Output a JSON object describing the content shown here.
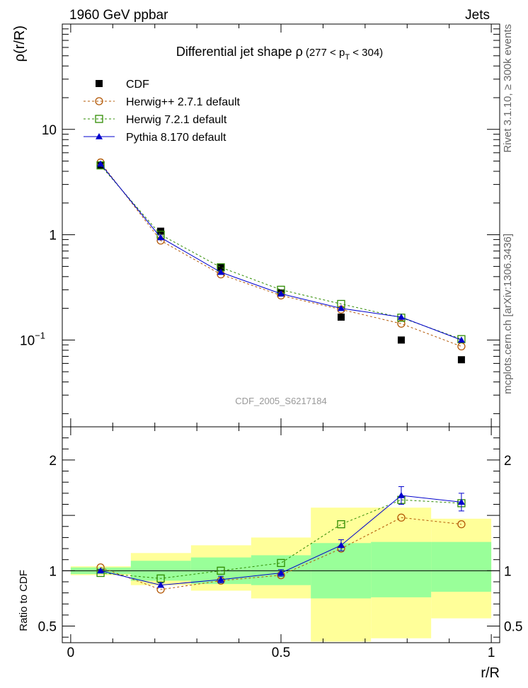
{
  "header": {
    "left": "1960 GeV ppbar",
    "right": "Jets"
  },
  "side_labels": {
    "rivet": "Rivet 3.1.10, ≥ 300k events",
    "mcplots": "mcplots.cern.ch [arXiv:1306.3436]"
  },
  "chart_data": [
    {
      "type": "line",
      "panel": "main",
      "title_main": "Differential jet shape  ρ",
      "title_range": "(277 < p",
      "title_sub": "T",
      "title_end": " < 304)",
      "ylabel": "ρ(r/R)",
      "analysis_label": "CDF_2005_S6217184",
      "yscale": "log",
      "xlim": [
        -0.02,
        1.02
      ],
      "ylim": [
        0.015,
        100
      ],
      "ytick_labels": [
        {
          "value": 10,
          "label": "10"
        },
        {
          "value": 1,
          "label": "1"
        },
        {
          "value": 0.1,
          "label": "10",
          "sup": "−1"
        }
      ],
      "x": [
        0.071,
        0.214,
        0.357,
        0.5,
        0.643,
        0.786,
        0.929
      ],
      "series": [
        {
          "name": "CDF",
          "color": "#000000",
          "marker": "square-filled",
          "line": "none",
          "values": [
            4.6,
            1.08,
            0.49,
            0.28,
            0.165,
            0.1,
            0.065
          ]
        },
        {
          "name": "Herwig++ 2.7.1 default",
          "color": "#b35806",
          "marker": "circle-open",
          "line": "dashed",
          "values": [
            4.85,
            0.88,
            0.42,
            0.265,
            0.195,
            0.143,
            0.087
          ]
        },
        {
          "name": "Herwig 7.2.1 default",
          "color": "#2e8b00",
          "marker": "square-open",
          "line": "dashed",
          "values": [
            4.55,
            1.0,
            0.49,
            0.3,
            0.22,
            0.163,
            0.102
          ]
        },
        {
          "name": "Pythia 8.170 default",
          "color": "#0000cc",
          "marker": "triangle-filled",
          "line": "solid",
          "values": [
            4.7,
            0.94,
            0.44,
            0.275,
            0.2,
            0.165,
            0.1
          ]
        }
      ]
    },
    {
      "type": "line",
      "panel": "ratio",
      "ylabel": "Ratio to CDF",
      "xlabel": "r/R",
      "yscale": "linear",
      "xlim": [
        -0.02,
        1.02
      ],
      "ylim": [
        0.35,
        2.3
      ],
      "ytick_labels": [
        {
          "value": 0.5,
          "label": "0.5"
        },
        {
          "value": 1,
          "label": "1"
        },
        {
          "value": 2,
          "label": "2"
        }
      ],
      "xtick_labels": [
        {
          "value": 0,
          "label": "0"
        },
        {
          "value": 0.5,
          "label": "0.5"
        },
        {
          "value": 1,
          "label": "1"
        }
      ],
      "bins": [
        [
          0,
          0.143
        ],
        [
          0.143,
          0.286
        ],
        [
          0.286,
          0.429
        ],
        [
          0.429,
          0.571
        ],
        [
          0.571,
          0.714
        ],
        [
          0.714,
          0.857
        ],
        [
          0.857,
          1.0
        ]
      ],
      "band_inner": [
        [
          0.97,
          1.03
        ],
        [
          0.91,
          1.09
        ],
        [
          0.88,
          1.12
        ],
        [
          0.87,
          1.14
        ],
        [
          0.75,
          1.25
        ],
        [
          0.76,
          1.26
        ],
        [
          0.81,
          1.26
        ]
      ],
      "band_outer": [
        [
          0.96,
          1.04
        ],
        [
          0.87,
          1.16
        ],
        [
          0.82,
          1.23
        ],
        [
          0.75,
          1.3
        ],
        [
          0.36,
          1.57
        ],
        [
          0.39,
          1.57
        ],
        [
          0.57,
          1.47
        ]
      ],
      "band_colors": {
        "inner": "#99ff99",
        "outer": "#ffff99"
      },
      "x": [
        0.071,
        0.214,
        0.357,
        0.5,
        0.643,
        0.786,
        0.929
      ],
      "series": [
        {
          "name": "Herwig++ 2.7.1 default",
          "color": "#b35806",
          "marker": "circle-open",
          "line": "dashed",
          "values": [
            1.03,
            0.83,
            0.91,
            0.96,
            1.2,
            1.48,
            1.42
          ]
        },
        {
          "name": "Herwig 7.2.1 default",
          "color": "#2e8b00",
          "marker": "square-open",
          "line": "dashed",
          "values": [
            0.98,
            0.93,
            1.0,
            1.07,
            1.42,
            1.64,
            1.61
          ]
        },
        {
          "name": "Pythia 8.170 default",
          "color": "#0000cc",
          "marker": "triangle-filled",
          "line": "solid",
          "values": [
            1.0,
            0.87,
            0.92,
            0.98,
            1.23,
            1.68,
            1.62
          ],
          "errors": [
            0.01,
            0.02,
            0.03,
            0.03,
            0.05,
            0.08,
            0.08
          ]
        }
      ]
    }
  ]
}
